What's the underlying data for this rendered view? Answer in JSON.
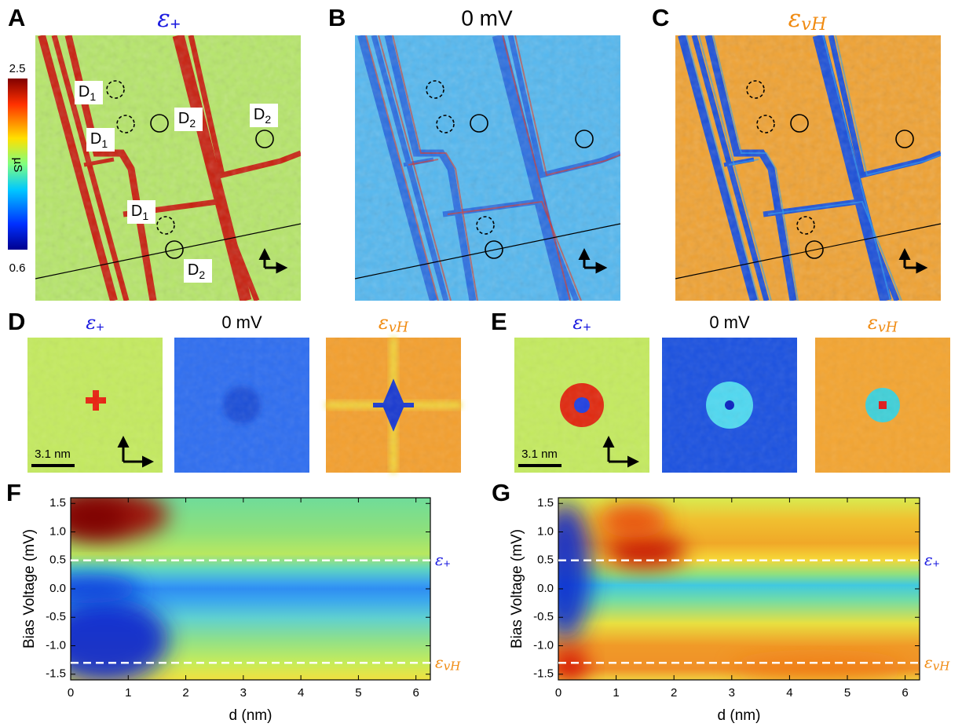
{
  "panels": {
    "A": {
      "label": "A",
      "title": {
        "symbol": "ε",
        "subscript": "+",
        "color": "#1a1adf"
      },
      "colorbar": {
        "max": 2.5,
        "min": 0.6,
        "unit": "µS"
      },
      "annotations": [
        {
          "letter": "D",
          "subscript": "1"
        },
        {
          "letter": "D",
          "subscript": "1"
        },
        {
          "letter": "D",
          "subscript": "2"
        },
        {
          "letter": "D",
          "subscript": "2"
        },
        {
          "letter": "D",
          "subscript": "1"
        },
        {
          "letter": "D",
          "subscript": "2"
        }
      ]
    },
    "B": {
      "label": "B",
      "title": "0 mV"
    },
    "C": {
      "label": "C",
      "title": {
        "symbol": "ε",
        "subscript": "vH",
        "color": "#f08a10"
      }
    },
    "D": {
      "label": "D",
      "titles": [
        {
          "symbol": "ε",
          "subscript": "+",
          "color": "#1a1adf"
        },
        "0 mV",
        {
          "symbol": "ε",
          "subscript": "vH",
          "color": "#f08a10"
        }
      ],
      "scale_bar": "3.1 nm"
    },
    "E": {
      "label": "E",
      "titles": [
        {
          "symbol": "ε",
          "subscript": "+",
          "color": "#1a1adf"
        },
        "0 mV",
        {
          "symbol": "ε",
          "subscript": "vH",
          "color": "#f08a10"
        }
      ],
      "scale_bar": "3.1 nm"
    }
  },
  "chart_data": [
    {
      "type": "heatmap",
      "panel_label": "F",
      "xlabel": "d (nm)",
      "ylabel": "Bias Voltage (mV)",
      "xlim": [
        0,
        6.25
      ],
      "ylim": [
        -1.6,
        1.6
      ],
      "xticks": [
        0,
        1,
        2,
        3,
        4,
        5,
        6
      ],
      "yticks": [
        1.5,
        {
          "value": 1,
          "label": "1.0"
        },
        0.5,
        {
          "value": 0,
          "label": "0.0"
        },
        -0.5,
        {
          "value": -1,
          "label": "-1.0"
        },
        -1.5
      ],
      "lines": [
        {
          "value": 0.5,
          "label": {
            "symbol": "ε",
            "subscript": "+",
            "color": "#1a1adf"
          }
        },
        {
          "value": -1.3,
          "label": {
            "symbol": "ε",
            "subscript": "vH",
            "color": "#f08a10"
          }
        }
      ]
    },
    {
      "type": "heatmap",
      "panel_label": "G",
      "xlabel": "d (nm)",
      "ylabel": "Bias Voltage (mV)",
      "xlim": [
        0,
        6.25
      ],
      "ylim": [
        -1.6,
        1.6
      ],
      "xticks": [
        0,
        1,
        2,
        3,
        4,
        5,
        6
      ],
      "yticks": [
        1.5,
        {
          "value": 1,
          "label": "1.0"
        },
        0.5,
        {
          "value": 0,
          "label": "0.0"
        },
        -0.5,
        {
          "value": -1,
          "label": "-1.0"
        },
        -1.5
      ],
      "lines": [
        {
          "value": 0.5,
          "label": {
            "symbol": "ε",
            "subscript": "+",
            "color": "#1a1adf"
          }
        },
        {
          "value": -1.3,
          "label": {
            "symbol": "ε",
            "subscript": "vH",
            "color": "#f08a10"
          }
        }
      ]
    }
  ]
}
